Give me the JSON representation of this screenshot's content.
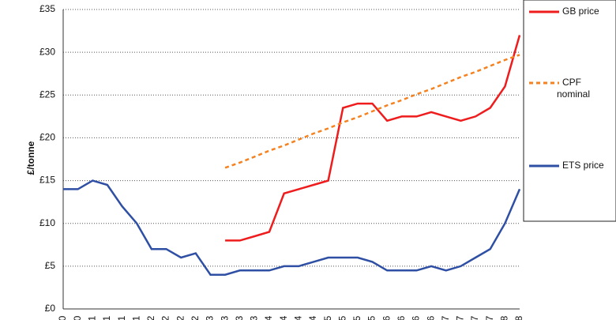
{
  "chart_data": {
    "type": "line",
    "y_label": "£/tonne",
    "categories": [
      "0",
      "0",
      "1",
      "1",
      "1",
      "1",
      "2",
      "2",
      "2",
      "2",
      "3",
      "3",
      "3",
      "3",
      "4",
      "4",
      "4",
      "4",
      "5",
      "5",
      "5",
      "5",
      "6",
      "6",
      "6",
      "6",
      "7",
      "7",
      "7",
      "7",
      "8",
      "8"
    ],
    "series": [
      {
        "name": "GB price",
        "color": "#ee1c1c",
        "dash": false,
        "values": [
          null,
          null,
          null,
          null,
          null,
          null,
          null,
          null,
          null,
          null,
          null,
          8,
          8,
          8.5,
          9,
          13.5,
          14,
          14.5,
          15,
          23.5,
          24,
          24,
          22,
          22.5,
          22.5,
          23,
          22.5,
          22,
          22.5,
          23.5,
          26,
          32
        ]
      },
      {
        "name": "CPF nominal",
        "color": "#f58220",
        "dash": true,
        "values": [
          null,
          null,
          null,
          null,
          null,
          null,
          null,
          null,
          null,
          null,
          null,
          16.5,
          17.1,
          17.8,
          18.5,
          19.1,
          19.8,
          20.5,
          21.1,
          21.8,
          22.4,
          23.1,
          23.8,
          24.4,
          25.1,
          25.7,
          26.4,
          27.1,
          27.7,
          28.4,
          29.1,
          29.7
        ]
      },
      {
        "name": "ETS price",
        "color": "#2e4fa3",
        "dash": false,
        "values": [
          14,
          14,
          15,
          14.5,
          12,
          10,
          7,
          7,
          6,
          6.5,
          4,
          4,
          4.5,
          4.5,
          4.5,
          5,
          5,
          5.5,
          6,
          6,
          6,
          5.5,
          4.5,
          4.5,
          4.5,
          5,
          4.5,
          5,
          6,
          7,
          10,
          14
        ]
      }
    ],
    "ylim": [
      0,
      35
    ],
    "yticks": [
      {
        "value": 0,
        "label": "£0"
      },
      {
        "value": 5,
        "label": "£5"
      },
      {
        "value": 10,
        "label": "£10"
      },
      {
        "value": 15,
        "label": "£15"
      },
      {
        "value": 20,
        "label": "£20"
      },
      {
        "value": 25,
        "label": "£25"
      },
      {
        "value": 30,
        "label": "£30"
      },
      {
        "value": 35,
        "label": "£35"
      }
    ],
    "grid": true
  }
}
